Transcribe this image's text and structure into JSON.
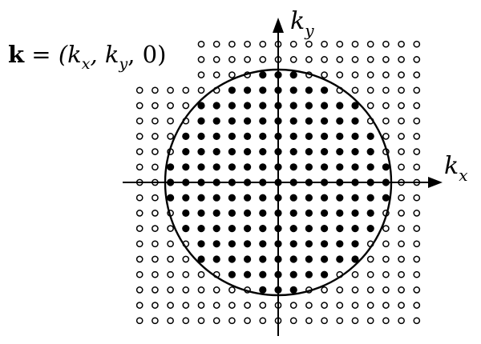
{
  "equation": {
    "bold_symbol": "k",
    "rest": " = (k",
    "sub_x": "x",
    "comma1": ", k",
    "sub_y": "y",
    "tail": ", 0)"
  },
  "axes": {
    "x_label_main": "k",
    "x_label_sub": "x",
    "y_label_main": "k",
    "y_label_sub": "y"
  },
  "lattice": {
    "filled_marker": "filled-dot",
    "empty_marker": "open-circle",
    "fill_color": "#000000",
    "stroke_color": "#000000"
  }
}
